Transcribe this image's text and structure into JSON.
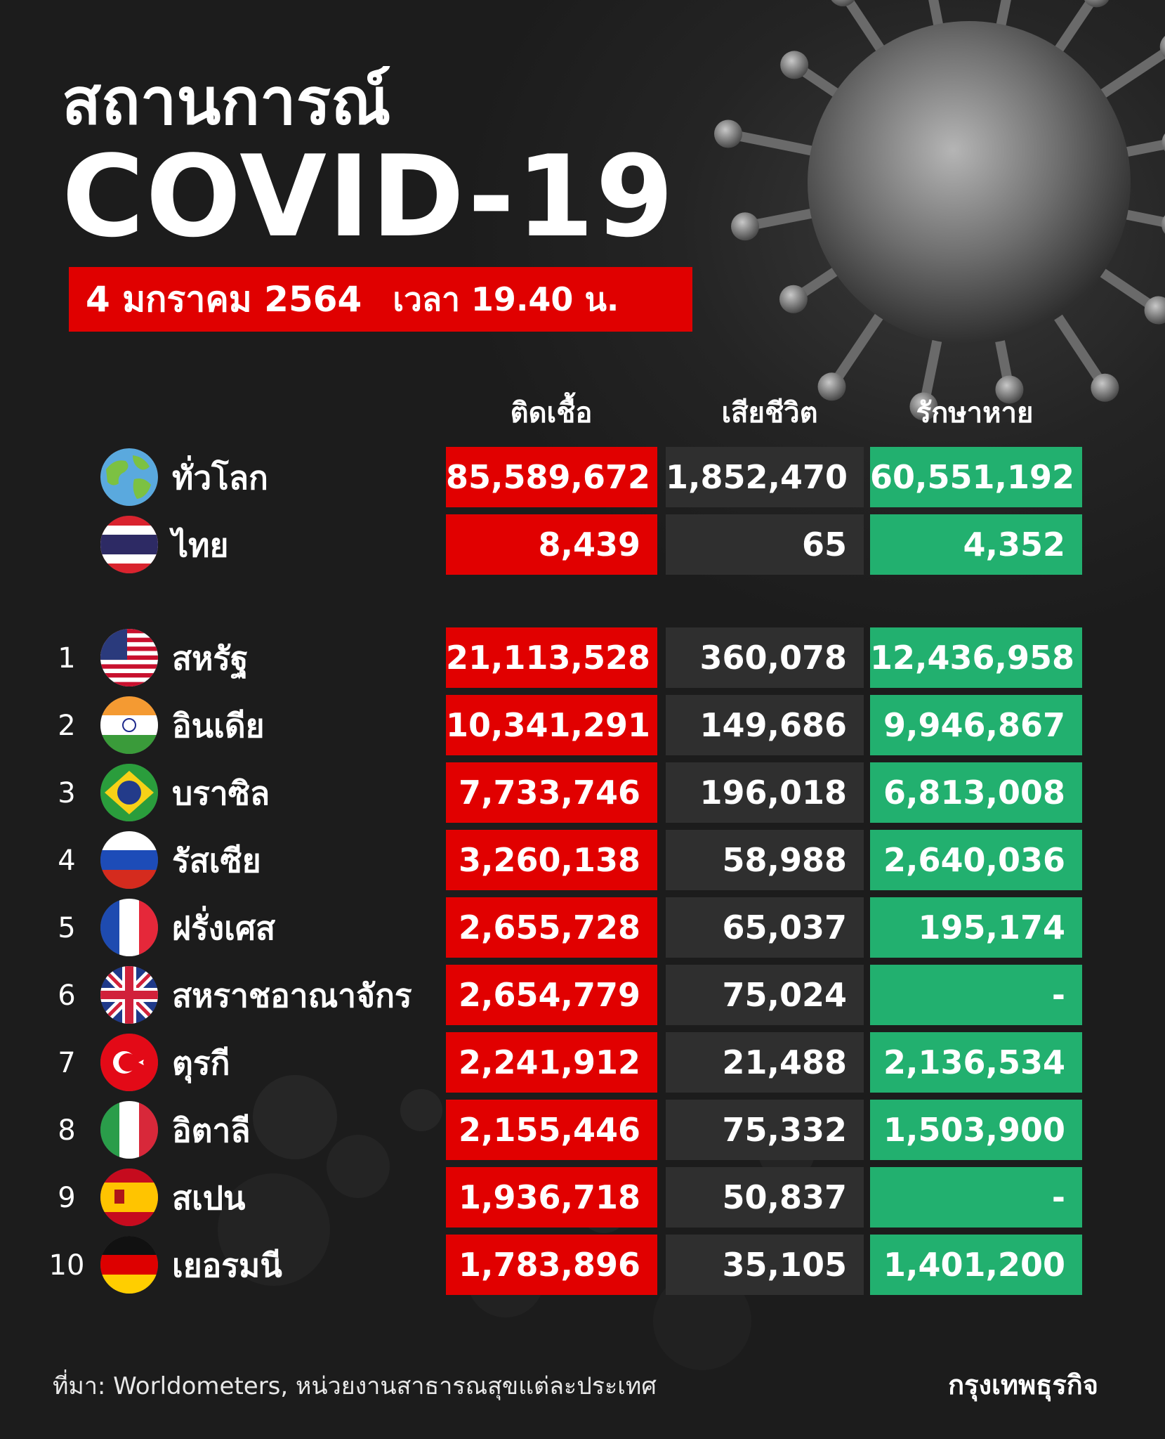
{
  "header": {
    "title_thai": "สถานการณ์",
    "title_en": "COVID-19",
    "date": "4 มกราคม 2564",
    "time": "เวลา 19.40 น."
  },
  "columns": {
    "cases": "ติดเชื้อ",
    "deaths": "เสียชีวิต",
    "recovered": "รักษาหาย"
  },
  "summary": [
    {
      "name": "ทั่วโลก",
      "flag": "globe-icon",
      "cases": "85,589,672",
      "deaths": "1,852,470",
      "recovered": "60,551,192"
    },
    {
      "name": "ไทย",
      "flag": "thailand-flag-icon",
      "cases": "8,439",
      "deaths": "65",
      "recovered": "4,352"
    }
  ],
  "countries": [
    {
      "rank": "1",
      "name": "สหรัฐ",
      "flag": "usa-flag-icon",
      "cases": "21,113,528",
      "deaths": "360,078",
      "recovered": "12,436,958"
    },
    {
      "rank": "2",
      "name": "อินเดีย",
      "flag": "india-flag-icon",
      "cases": "10,341,291",
      "deaths": "149,686",
      "recovered": "9,946,867"
    },
    {
      "rank": "3",
      "name": "บราซิล",
      "flag": "brazil-flag-icon",
      "cases": "7,733,746",
      "deaths": "196,018",
      "recovered": "6,813,008"
    },
    {
      "rank": "4",
      "name": "รัสเซีย",
      "flag": "russia-flag-icon",
      "cases": "3,260,138",
      "deaths": "58,988",
      "recovered": "2,640,036"
    },
    {
      "rank": "5",
      "name": "ฝรั่งเศส",
      "flag": "france-flag-icon",
      "cases": "2,655,728",
      "deaths": "65,037",
      "recovered": "195,174"
    },
    {
      "rank": "6",
      "name": "สหราชอาณาจักร",
      "flag": "uk-flag-icon",
      "cases": "2,654,779",
      "deaths": "75,024",
      "recovered": "-"
    },
    {
      "rank": "7",
      "name": "ตุรกี",
      "flag": "turkey-flag-icon",
      "cases": "2,241,912",
      "deaths": "21,488",
      "recovered": "2,136,534"
    },
    {
      "rank": "8",
      "name": "อิตาลี",
      "flag": "italy-flag-icon",
      "cases": "2,155,446",
      "deaths": "75,332",
      "recovered": "1,503,900"
    },
    {
      "rank": "9",
      "name": "สเปน",
      "flag": "spain-flag-icon",
      "cases": "1,936,718",
      "deaths": "50,837",
      "recovered": "-"
    },
    {
      "rank": "10",
      "name": "เยอรมนี",
      "flag": "germany-flag-icon",
      "cases": "1,783,896",
      "deaths": "35,105",
      "recovered": "1,401,200"
    }
  ],
  "footer": {
    "source": "ที่มา: Worldometers, หน่วยงานสาธารณสุขแต่ละประเทศ",
    "brand": "กรุงเทพธุรกิจ"
  },
  "colors": {
    "cases": "#e10000",
    "deaths": "#2f2f2f",
    "recovered": "#22b06f",
    "banner": "#e00000"
  }
}
